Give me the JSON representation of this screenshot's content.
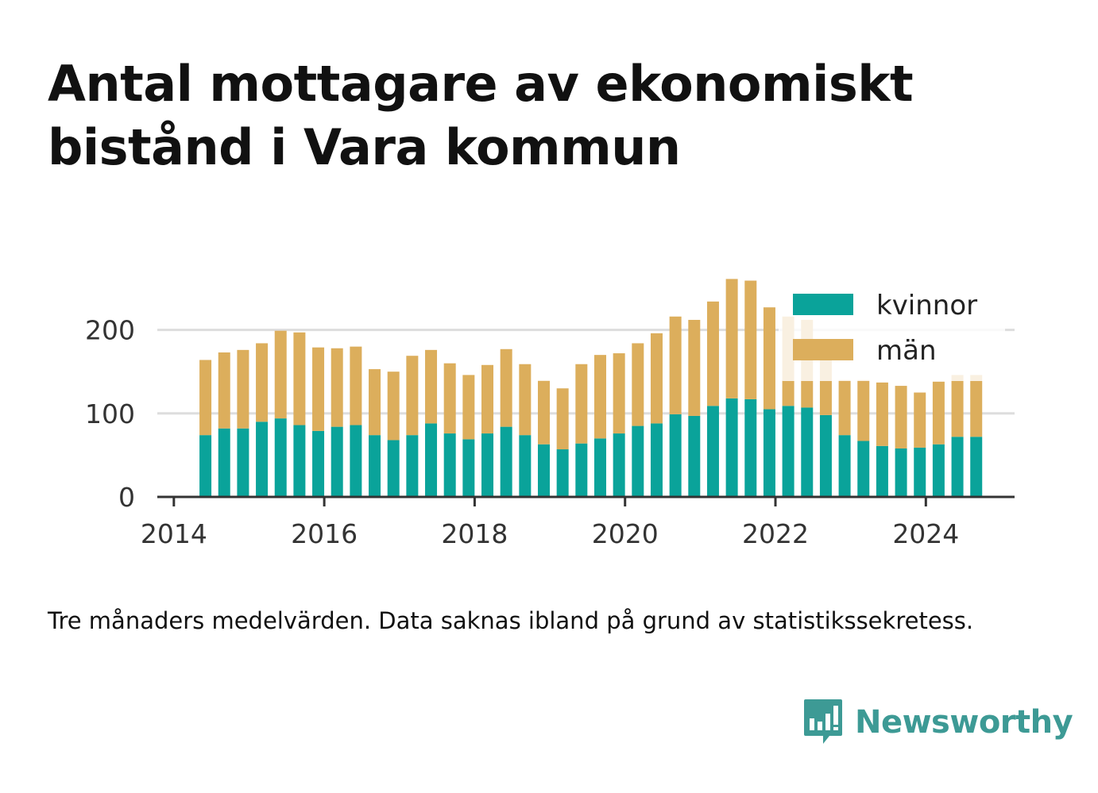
{
  "title": "Antal mottagare av ekonomiskt bistånd i Vara kommun",
  "caption": "Tre månaders medelvärden. Data saknas ibland på grund av statistikssekretess.",
  "brand": {
    "name": "Newsworthy",
    "icon": "newsworthy-bar-chart-icon",
    "color": "#3d9a95"
  },
  "colors": {
    "kvinnor": "#0aa39a",
    "man": "#dcae5c",
    "grid": "#dddddd",
    "axis": "#333333"
  },
  "chart_data": {
    "type": "bar",
    "stacked": true,
    "x": [
      2014.42,
      2014.67,
      2014.92,
      2015.17,
      2015.42,
      2015.67,
      2015.92,
      2016.17,
      2016.42,
      2016.67,
      2016.92,
      2017.17,
      2017.42,
      2017.67,
      2017.92,
      2018.17,
      2018.42,
      2018.67,
      2018.92,
      2019.17,
      2019.42,
      2019.67,
      2019.92,
      2020.17,
      2020.42,
      2020.67,
      2020.92,
      2021.17,
      2021.42,
      2021.67,
      2021.92,
      2022.17,
      2022.42,
      2022.67,
      2022.92,
      2023.17,
      2023.42,
      2023.67,
      2023.92,
      2024.17,
      2024.42,
      2024.67
    ],
    "series": [
      {
        "name": "kvinnor",
        "values": [
          74,
          82,
          82,
          90,
          94,
          86,
          79,
          84,
          86,
          74,
          68,
          74,
          88,
          76,
          69,
          76,
          84,
          74,
          63,
          57,
          64,
          70,
          76,
          85,
          88,
          99,
          97,
          109,
          118,
          117,
          105,
          109,
          107,
          98,
          74,
          67,
          61,
          58,
          59,
          63,
          72,
          72
        ]
      },
      {
        "name": "män",
        "values": [
          90,
          91,
          94,
          94,
          105,
          111,
          100,
          94,
          94,
          79,
          82,
          95,
          88,
          84,
          77,
          82,
          93,
          85,
          76,
          73,
          95,
          100,
          96,
          99,
          108,
          117,
          115,
          125,
          143,
          142,
          122,
          107,
          105,
          87,
          66,
          73,
          76,
          75,
          66,
          75,
          74,
          74
        ]
      }
    ],
    "xticks": [
      "2014",
      "2016",
      "2018",
      "2020",
      "2022",
      "2024"
    ],
    "xtick_values": [
      2014,
      2016,
      2018,
      2020,
      2022,
      2024
    ],
    "yticks": [
      "0",
      "100",
      "200"
    ],
    "ytick_values": [
      0,
      100,
      200
    ],
    "xlim": [
      2013.78,
      2025.18
    ],
    "ylim": [
      0,
      250
    ],
    "grid": true,
    "legend": "top-right",
    "xlabel": "",
    "ylabel": ""
  }
}
